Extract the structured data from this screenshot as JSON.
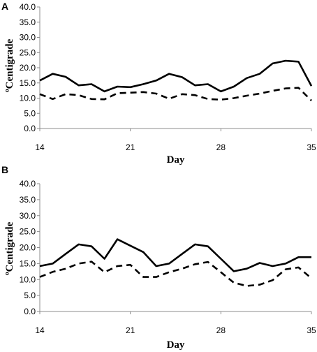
{
  "chart_data": [
    {
      "panel_label": "A",
      "type": "line",
      "xlabel": "Day",
      "ylabel": "ºCentigrade",
      "xlim": [
        14,
        35
      ],
      "ylim": [
        0,
        40
      ],
      "x_ticks": [
        14,
        21,
        28,
        35
      ],
      "y_ticks": [
        "0.0",
        "5.0",
        "10.0",
        "15.0",
        "20.0",
        "25.0",
        "30.0",
        "35.0",
        "40.0"
      ],
      "grid": false,
      "legend": "none",
      "series": [
        {
          "style": "solid",
          "color": "#000000",
          "x": [
            14,
            15,
            16,
            17,
            18,
            19,
            20,
            21,
            22,
            23,
            24,
            25,
            26,
            27,
            28,
            29,
            30,
            31,
            32,
            33,
            34,
            35
          ],
          "y": [
            15.8,
            18.0,
            17.0,
            14.2,
            14.6,
            12.2,
            13.8,
            13.6,
            14.6,
            15.8,
            18.0,
            16.9,
            14.2,
            14.6,
            12.2,
            13.8,
            16.6,
            18.0,
            21.4,
            22.3,
            22.0,
            14.0
          ]
        },
        {
          "style": "dashed",
          "color": "#000000",
          "x": [
            14,
            15,
            16,
            17,
            18,
            19,
            20,
            21,
            22,
            23,
            24,
            25,
            26,
            27,
            28,
            29,
            30,
            31,
            32,
            33,
            34,
            35
          ],
          "y": [
            11.3,
            9.7,
            11.3,
            11.0,
            9.7,
            9.6,
            11.6,
            11.8,
            12.0,
            11.5,
            9.8,
            11.3,
            11.0,
            9.7,
            9.5,
            10.0,
            10.8,
            11.5,
            12.4,
            13.2,
            13.4,
            9.2
          ]
        }
      ]
    },
    {
      "panel_label": "B",
      "type": "line",
      "xlabel": "Day",
      "ylabel": "ºCentigrade",
      "xlim": [
        14,
        35
      ],
      "ylim": [
        0,
        40
      ],
      "x_ticks": [
        14,
        21,
        28,
        35
      ],
      "y_ticks": [
        "0.0",
        "5.0",
        "10.0",
        "15.0",
        "20.0",
        "25.0",
        "30.0",
        "35.0",
        "40.0"
      ],
      "grid": false,
      "legend": "none",
      "series": [
        {
          "style": "solid",
          "color": "#000000",
          "x": [
            14,
            15,
            16,
            17,
            18,
            19,
            20,
            21,
            22,
            23,
            24,
            25,
            26,
            27,
            28,
            29,
            30,
            31,
            32,
            33,
            34,
            35
          ],
          "y": [
            14.2,
            15.0,
            18.0,
            21.0,
            20.4,
            16.5,
            22.6,
            20.6,
            18.6,
            14.2,
            15.0,
            18.0,
            21.0,
            20.4,
            16.5,
            12.6,
            13.4,
            15.2,
            14.2,
            15.0,
            17.0,
            17.0
          ]
        },
        {
          "style": "dashed",
          "color": "#000000",
          "x": [
            14,
            15,
            16,
            17,
            18,
            19,
            20,
            21,
            22,
            23,
            24,
            25,
            26,
            27,
            28,
            29,
            30,
            31,
            32,
            33,
            34,
            35
          ],
          "y": [
            10.8,
            12.4,
            13.4,
            15.0,
            15.6,
            12.3,
            14.2,
            14.6,
            10.8,
            10.8,
            12.3,
            13.4,
            14.8,
            15.5,
            12.3,
            9.0,
            8.0,
            8.4,
            9.8,
            13.2,
            13.8,
            10.4
          ]
        }
      ]
    }
  ]
}
